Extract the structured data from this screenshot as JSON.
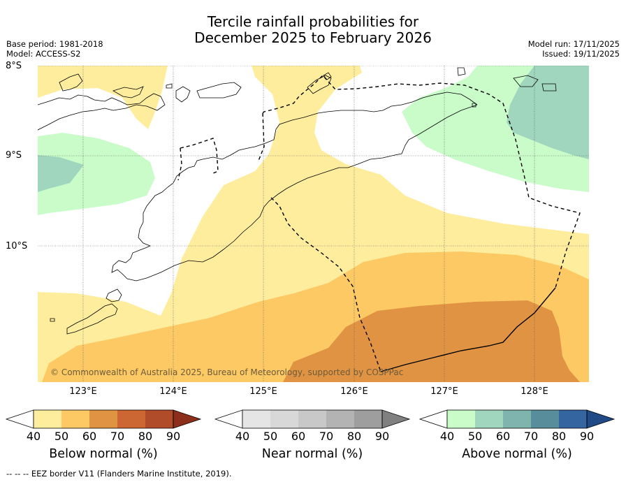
{
  "title_line1": "Tercile rainfall probabilities for",
  "title_line2": "December 2025 to February 2026",
  "meta_left": [
    "Base period: 1981-2018",
    "Model: ACCESS-S2"
  ],
  "meta_right": [
    "Model run: 17/11/2025",
    "Issued: 19/11/2025"
  ],
  "lat_labels": [
    "8°S",
    "9°S",
    "10°S"
  ],
  "lon_labels": [
    "123°E",
    "124°E",
    "125°E",
    "126°E",
    "127°E",
    "128°E"
  ],
  "copyright": "© Commonwealth of Australia 2025, Bureau of Meteorology, supported by COSPPac",
  "colorbars": [
    {
      "label": "Below normal (%)",
      "ticks": [
        "40",
        "50",
        "60",
        "70",
        "80",
        "90"
      ],
      "colors": [
        "#ffffff",
        "#ffed9e",
        "#fdc964",
        "#e09443",
        "#cc6633",
        "#b04c2a",
        "#8c2e1b"
      ]
    },
    {
      "label": "Near normal (%)",
      "ticks": [
        "40",
        "50",
        "60",
        "70",
        "80",
        "90"
      ],
      "colors": [
        "#ffffff",
        "#e5e5e5",
        "#d8d8d8",
        "#c8c8c8",
        "#b3b3b3",
        "#9e9e9e",
        "#808080"
      ]
    },
    {
      "label": "Above normal (%)",
      "ticks": [
        "40",
        "50",
        "60",
        "70",
        "80",
        "90"
      ],
      "colors": [
        "#ffffff",
        "#c9fcc9",
        "#a0d6bd",
        "#7fb4ae",
        "#588e9c",
        "#3565a0",
        "#1f4a85"
      ]
    }
  ],
  "footer": "--  --  -- EEZ border V11 (Flanders Marine Institute, 2019).",
  "colors": {
    "below_50": "#ffed9e",
    "below_60": "#fdc964",
    "below_70": "#e09443",
    "above_50": "#c9fcc9",
    "above_60": "#a0d6bd"
  }
}
